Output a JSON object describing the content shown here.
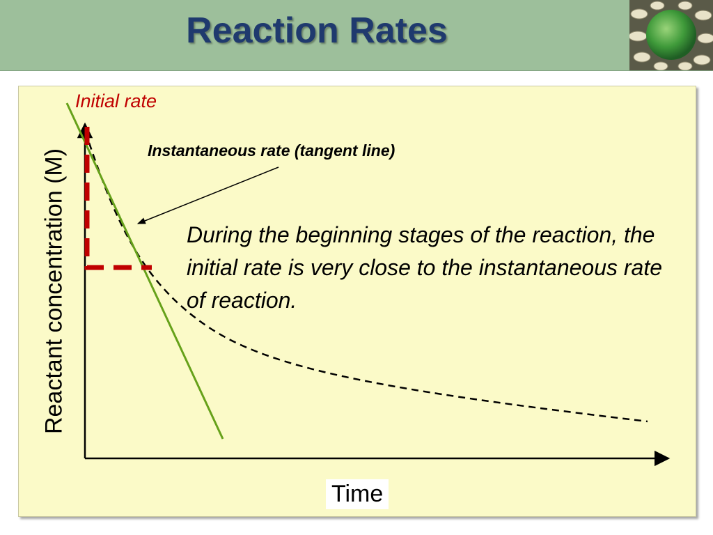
{
  "slide": {
    "title": "Reaction Rates"
  },
  "diagram": {
    "label_initial_rate": "Initial rate",
    "label_tangent": "Instantaneous rate (tangent line)",
    "body_text": "During the beginning stages of the reaction, the initial rate is very close to the instantaneous rate of reaction.",
    "ylabel": "Reactant concentration (M)",
    "xlabel": "Time"
  },
  "colors": {
    "header_bg": "#9dbf9b",
    "title": "#1f3a6e",
    "panel_bg": "#fbfac8",
    "initial_rate": "#c00000",
    "tangent_line": "#66a11a",
    "curve": "#000000"
  },
  "icons": {
    "logo": "molecule-sphere-icon"
  }
}
